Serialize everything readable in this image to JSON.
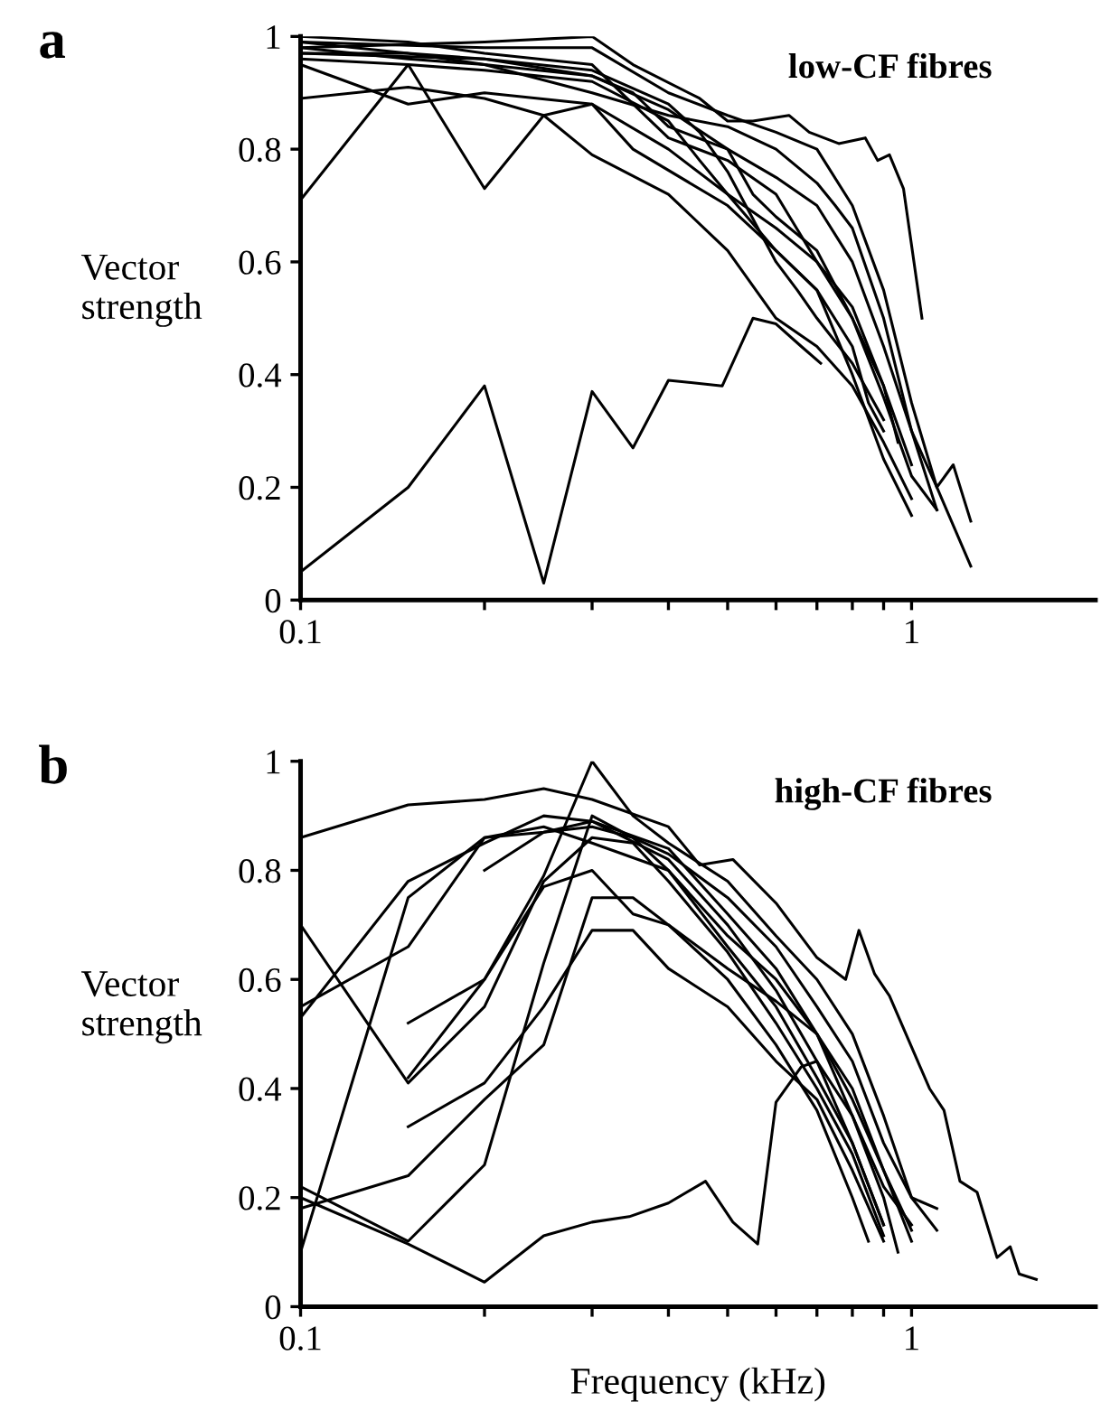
{
  "chart_data": [
    {
      "type": "line",
      "title": "a",
      "ylabel": "Vector\nstrength",
      "annotations": [
        "low-CF fibres"
      ],
      "log": "x",
      "xlim": [
        0.1,
        2
      ],
      "xticks": [
        {
          "value": 0.1,
          "label": "0.1"
        },
        {
          "value": 0.2,
          "label": null
        },
        {
          "value": 0.3,
          "label": null
        },
        {
          "value": 0.4,
          "label": null
        },
        {
          "value": 0.5,
          "label": null
        },
        {
          "value": 0.6,
          "label": null
        },
        {
          "value": 0.7,
          "label": null
        },
        {
          "value": 0.8,
          "label": null
        },
        {
          "value": 0.9,
          "label": null
        },
        {
          "value": 1,
          "label": "1"
        }
      ],
      "ylim": [
        0,
        1
      ],
      "yticks": [
        0,
        {
          "value": 0.2,
          "label": "0.2"
        },
        {
          "value": 0.4,
          "label": "0.4"
        },
        {
          "value": 0.6,
          "label": "0.6"
        },
        {
          "value": 0.8,
          "label": "0.8"
        },
        1
      ],
      "series": [
        {
          "color": "#000000",
          "x": [
            0.1,
            0.15,
            0.2,
            0.25,
            0.3,
            0.35,
            0.4,
            0.49,
            0.55,
            0.6,
            0.66,
            0.71
          ],
          "values": [
            0.05,
            0.2,
            0.38,
            0.03,
            0.37,
            0.27,
            0.39,
            0.38,
            0.5,
            0.49,
            0.45,
            0.42
          ]
        },
        {
          "color": "#000000",
          "x": [
            0.1,
            0.15,
            0.2,
            0.25,
            0.3,
            0.35,
            0.5,
            0.6,
            0.7,
            0.8,
            0.9,
            1.0
          ],
          "values": [
            0.71,
            0.95,
            0.73,
            0.86,
            0.88,
            0.8,
            0.7,
            0.62,
            0.55,
            0.4,
            0.25,
            0.15
          ]
        },
        {
          "color": "#000000",
          "x": [
            0.1,
            0.15,
            0.2,
            0.25,
            0.3,
            0.4,
            0.5,
            0.6,
            0.7,
            0.8,
            0.9,
            1.0
          ],
          "values": [
            0.89,
            0.91,
            0.89,
            0.86,
            0.79,
            0.72,
            0.62,
            0.5,
            0.45,
            0.38,
            0.28,
            0.18
          ]
        },
        {
          "color": "#000000",
          "x": [
            0.1,
            0.15,
            0.2,
            0.3,
            0.4,
            0.5,
            0.6,
            0.7,
            0.8,
            0.9,
            1.0,
            1.1
          ],
          "values": [
            0.95,
            0.88,
            0.9,
            0.88,
            0.8,
            0.72,
            0.66,
            0.6,
            0.5,
            0.36,
            0.22,
            0.16
          ]
        },
        {
          "color": "#000000",
          "x": [
            0.1,
            0.2,
            0.3,
            0.35,
            0.45,
            0.5,
            0.55,
            0.63,
            0.68,
            0.76,
            0.84,
            0.88,
            0.92,
            0.97,
            1.04
          ],
          "values": [
            0.98,
            0.99,
            1.0,
            0.95,
            0.89,
            0.85,
            0.85,
            0.86,
            0.83,
            0.81,
            0.82,
            0.78,
            0.79,
            0.73,
            0.5
          ]
        },
        {
          "color": "#000000",
          "x": [
            0.1,
            0.2,
            0.3,
            0.4,
            0.5,
            0.6,
            0.7,
            0.8,
            0.9,
            1.0,
            1.1,
            1.17,
            1.25
          ],
          "values": [
            0.99,
            0.98,
            0.98,
            0.9,
            0.86,
            0.83,
            0.8,
            0.7,
            0.55,
            0.35,
            0.2,
            0.24,
            0.14
          ]
        },
        {
          "color": "#000000",
          "x": [
            0.1,
            0.15,
            0.2,
            0.3,
            0.4,
            0.5,
            0.6,
            0.7,
            0.8,
            0.9,
            1.0,
            1.1,
            1.25
          ],
          "values": [
            0.97,
            0.97,
            0.95,
            0.93,
            0.87,
            0.8,
            0.75,
            0.7,
            0.6,
            0.45,
            0.3,
            0.2,
            0.06
          ]
        },
        {
          "color": "#000000",
          "x": [
            0.1,
            0.15,
            0.2,
            0.3,
            0.35,
            0.4,
            0.5,
            0.6,
            0.7,
            0.8,
            0.9,
            1.0
          ],
          "values": [
            1.0,
            0.99,
            0.97,
            0.95,
            0.88,
            0.82,
            0.78,
            0.72,
            0.6,
            0.52,
            0.38,
            0.24
          ]
        },
        {
          "color": "#000000",
          "x": [
            0.1,
            0.15,
            0.2,
            0.3,
            0.4,
            0.45,
            0.5,
            0.6,
            0.7,
            0.8,
            0.85,
            0.9
          ],
          "values": [
            0.96,
            0.95,
            0.94,
            0.92,
            0.85,
            0.78,
            0.72,
            0.62,
            0.55,
            0.45,
            0.35,
            0.3
          ]
        },
        {
          "color": "#000000",
          "x": [
            0.1,
            0.15,
            0.2,
            0.3,
            0.35,
            0.4,
            0.5,
            0.55,
            0.6,
            0.7,
            0.8,
            0.9,
            0.95
          ],
          "values": [
            0.99,
            0.97,
            0.96,
            0.93,
            0.9,
            0.84,
            0.8,
            0.72,
            0.68,
            0.62,
            0.5,
            0.38,
            0.28
          ]
        },
        {
          "color": "#000000",
          "x": [
            0.1,
            0.15,
            0.2,
            0.3,
            0.4,
            0.5,
            0.6,
            0.7,
            0.75,
            0.8,
            0.9,
            1.0,
            1.1
          ],
          "values": [
            0.98,
            0.96,
            0.95,
            0.9,
            0.86,
            0.84,
            0.8,
            0.74,
            0.7,
            0.66,
            0.5,
            0.3,
            0.16
          ]
        },
        {
          "color": "#000000",
          "x": [
            0.1,
            0.2,
            0.3,
            0.4,
            0.45,
            0.5,
            0.6,
            0.65,
            0.7,
            0.8,
            0.9
          ],
          "values": [
            0.97,
            0.96,
            0.94,
            0.88,
            0.83,
            0.76,
            0.6,
            0.55,
            0.5,
            0.42,
            0.32
          ]
        }
      ]
    },
    {
      "type": "line",
      "title": "b",
      "xlabel": "Frequency (kHz)",
      "ylabel": "Vector\nstrength",
      "annotations": [
        "high-CF fibres"
      ],
      "log": "x",
      "xlim": [
        0.1,
        2
      ],
      "xticks": [
        {
          "value": 0.1,
          "label": "0.1"
        },
        {
          "value": 0.2,
          "label": null
        },
        {
          "value": 0.3,
          "label": null
        },
        {
          "value": 0.4,
          "label": null
        },
        {
          "value": 0.5,
          "label": null
        },
        {
          "value": 0.6,
          "label": null
        },
        {
          "value": 0.7,
          "label": null
        },
        {
          "value": 0.8,
          "label": null
        },
        {
          "value": 0.9,
          "label": null
        },
        {
          "value": 1,
          "label": "1"
        }
      ],
      "ylim": [
        0,
        1
      ],
      "yticks": [
        0,
        {
          "value": 0.2,
          "label": "0.2"
        },
        {
          "value": 0.4,
          "label": "0.4"
        },
        {
          "value": 0.6,
          "label": "0.6"
        },
        {
          "value": 0.8,
          "label": "0.8"
        },
        1
      ],
      "series": [
        {
          "color": "#000000",
          "x": [
            0.1,
            0.15,
            0.2,
            0.25,
            0.3,
            0.345,
            0.4,
            0.46,
            0.51,
            0.56,
            0.6,
            0.66,
            0.7,
            0.8,
            0.9,
            0.95
          ],
          "values": [
            0.2,
            0.115,
            0.045,
            0.13,
            0.155,
            0.165,
            0.19,
            0.23,
            0.155,
            0.115,
            0.375,
            0.44,
            0.45,
            0.35,
            0.2,
            0.1
          ]
        },
        {
          "color": "#000000",
          "x": [
            0.1,
            0.15,
            0.2,
            0.25,
            0.3,
            0.4,
            0.5,
            0.6,
            0.7,
            0.8,
            0.9,
            1.0
          ],
          "values": [
            0.55,
            0.66,
            0.86,
            0.88,
            0.85,
            0.8,
            0.68,
            0.6,
            0.5,
            0.35,
            0.22,
            0.15
          ]
        },
        {
          "color": "#000000",
          "x": [
            0.1,
            0.15,
            0.2,
            0.25,
            0.3,
            0.4,
            0.5,
            0.6,
            0.7,
            0.8,
            0.9
          ],
          "values": [
            0.53,
            0.78,
            0.85,
            0.9,
            0.89,
            0.82,
            0.7,
            0.58,
            0.45,
            0.3,
            0.15
          ]
        },
        {
          "color": "#000000",
          "x": [
            0.1,
            0.15,
            0.2,
            0.25,
            0.3,
            0.35,
            0.4,
            0.5,
            0.6,
            0.7,
            0.8,
            0.9
          ],
          "values": [
            0.7,
            0.41,
            0.55,
            0.78,
            0.86,
            0.85,
            0.78,
            0.65,
            0.52,
            0.4,
            0.28,
            0.13
          ]
        },
        {
          "color": "#000000",
          "x": [
            0.1,
            0.15,
            0.2,
            0.25,
            0.3,
            0.4,
            0.5,
            0.6,
            0.7,
            0.8,
            0.9,
            1.0
          ],
          "values": [
            0.1,
            0.75,
            0.86,
            0.87,
            0.89,
            0.84,
            0.72,
            0.62,
            0.5,
            0.4,
            0.25,
            0.12
          ]
        },
        {
          "color": "#000000",
          "x": [
            0.1,
            0.15,
            0.2,
            0.25,
            0.3,
            0.35,
            0.4,
            0.5,
            0.6,
            0.7,
            0.8,
            0.9
          ],
          "values": [
            0.22,
            0.12,
            0.26,
            0.63,
            0.9,
            0.86,
            0.8,
            0.66,
            0.55,
            0.42,
            0.3,
            0.15
          ]
        },
        {
          "color": "#000000",
          "x": [
            0.1,
            0.15,
            0.2,
            0.25,
            0.3,
            0.35,
            0.4,
            0.5,
            0.6,
            0.7,
            0.8,
            0.85
          ],
          "values": [
            0.18,
            0.24,
            0.38,
            0.48,
            0.75,
            0.75,
            0.7,
            0.6,
            0.48,
            0.36,
            0.2,
            0.12
          ]
        },
        {
          "color": "#000000",
          "x": [
            0.15,
            0.2,
            0.25,
            0.3,
            0.35,
            0.4,
            0.5,
            0.6,
            0.7,
            0.8,
            0.9
          ],
          "values": [
            0.33,
            0.41,
            0.55,
            0.69,
            0.69,
            0.62,
            0.55,
            0.45,
            0.38,
            0.25,
            0.12
          ]
        },
        {
          "color": "#000000",
          "x": [
            0.15,
            0.2,
            0.25,
            0.3,
            0.35,
            0.4,
            0.5,
            0.6,
            0.7,
            0.8,
            0.9,
            1.0
          ],
          "values": [
            0.52,
            0.6,
            0.77,
            0.8,
            0.72,
            0.7,
            0.62,
            0.56,
            0.5,
            0.38,
            0.25,
            0.14
          ]
        },
        {
          "color": "#000000",
          "x": [
            0.1,
            0.15,
            0.2,
            0.25,
            0.3,
            0.4,
            0.45,
            0.51,
            0.6,
            0.7,
            0.78,
            0.82,
            0.87,
            0.92,
            1.07,
            1.13,
            1.2,
            1.28,
            1.38,
            1.45,
            1.5,
            1.6
          ],
          "values": [
            0.86,
            0.92,
            0.93,
            0.95,
            0.93,
            0.88,
            0.81,
            0.82,
            0.74,
            0.64,
            0.6,
            0.69,
            0.61,
            0.57,
            0.4,
            0.36,
            0.23,
            0.21,
            0.09,
            0.11,
            0.06,
            0.05
          ]
        },
        {
          "color": "#000000",
          "x": [
            0.2,
            0.25,
            0.3,
            0.35,
            0.4,
            0.5,
            0.6,
            0.7,
            0.8,
            0.9,
            1.0,
            1.1
          ],
          "values": [
            0.8,
            0.87,
            0.88,
            0.86,
            0.83,
            0.75,
            0.66,
            0.55,
            0.45,
            0.3,
            0.2,
            0.18
          ]
        },
        {
          "color": "#000000",
          "x": [
            0.15,
            0.2,
            0.25,
            0.3,
            0.35,
            0.4,
            0.5,
            0.6,
            0.7,
            0.8,
            0.9,
            1.0,
            1.1
          ],
          "values": [
            0.42,
            0.6,
            0.79,
            1.0,
            0.9,
            0.85,
            0.78,
            0.68,
            0.6,
            0.5,
            0.35,
            0.2,
            0.14
          ]
        }
      ]
    }
  ]
}
